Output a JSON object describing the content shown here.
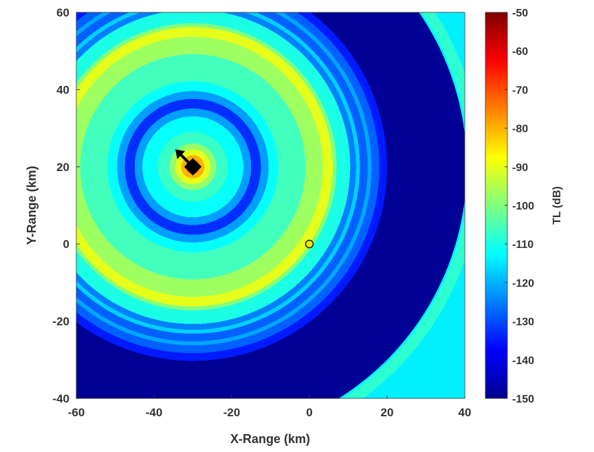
{
  "chart_data": {
    "type": "heatmap",
    "title": "",
    "xlabel": "X-Range (km)",
    "ylabel": "Y-Range (km)",
    "xlim": [
      -60,
      40
    ],
    "ylim": [
      -40,
      60
    ],
    "xticks": [
      "-60",
      "-40",
      "-20",
      "0",
      "20",
      "40"
    ],
    "yticks": [
      "-40",
      "-20",
      "0",
      "20",
      "40",
      "60"
    ],
    "colorbar": {
      "label": "TL (dB)",
      "range": [
        -150,
        -50
      ],
      "ticks": [
        "-50",
        "-60",
        "-70",
        "-80",
        "-90",
        "-100",
        "-110",
        "-120",
        "-130",
        "-140",
        "-150"
      ],
      "colormap": "jet"
    },
    "source": {
      "x": -30,
      "y": 20,
      "heading_deg": 45,
      "marker": "black-square-with-arrow"
    },
    "receiver": {
      "x": 0,
      "y": 0,
      "marker": "yellow-circle"
    },
    "rings_km_tl": [
      {
        "r": 90,
        "tl": -114
      },
      {
        "r": 74,
        "tl": -108
      },
      {
        "r": 71,
        "tl": -114
      },
      {
        "r": 70.5,
        "tl": -148
      },
      {
        "r": 50,
        "tl": -135
      },
      {
        "r": 48,
        "tl": -128
      },
      {
        "r": 46,
        "tl": -121
      },
      {
        "r": 45,
        "tl": -128
      },
      {
        "r": 43,
        "tl": -117
      },
      {
        "r": 42,
        "tl": -125
      },
      {
        "r": 40.5,
        "tl": -110
      },
      {
        "r": 37,
        "tl": -100
      },
      {
        "r": 36,
        "tl": -90
      },
      {
        "r": 33.5,
        "tl": -97
      },
      {
        "r": 29,
        "tl": -106
      },
      {
        "r": 22,
        "tl": -112
      },
      {
        "r": 19.5,
        "tl": -122
      },
      {
        "r": 17.5,
        "tl": -133
      },
      {
        "r": 15,
        "tl": -122
      },
      {
        "r": 13,
        "tl": -112
      },
      {
        "r": 9,
        "tl": -107
      },
      {
        "r": 6,
        "tl": -98
      },
      {
        "r": 4.5,
        "tl": -90
      },
      {
        "r": 3,
        "tl": -80
      },
      {
        "r": 1.8,
        "tl": -72
      }
    ]
  }
}
